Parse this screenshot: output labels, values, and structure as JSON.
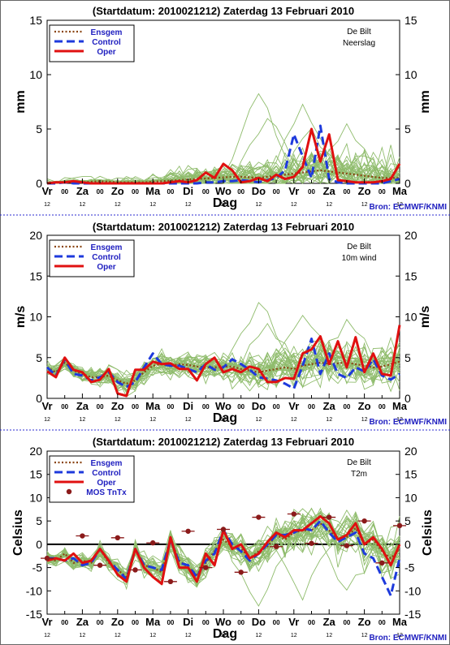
{
  "source": "Bron: ECMWF/KNMI",
  "x_axis": {
    "label": "Dag",
    "days": [
      "Vr",
      "Za",
      "Zo",
      "Ma",
      "Di",
      "Wo",
      "Do",
      "Vr",
      "Za",
      "Zo",
      "Ma"
    ],
    "hours_day": "12",
    "hours_mid": "00"
  },
  "colors": {
    "ensemble": "#8fbc6c",
    "ensgem": "#8b4513",
    "control": "#1e3adc",
    "oper": "#e01010",
    "label_blue": "#2020c0",
    "mos": "#8b1a1a"
  },
  "legend": {
    "ensgem": "Ensgem",
    "control": "Control",
    "oper": "Oper",
    "mos": "MOS TnTx"
  },
  "chart_data": [
    {
      "type": "line",
      "title": "(Startdatum: 2010021212)  Zaterdag 13 Februari 2010",
      "station": "De Bilt",
      "variable": "Neerslag",
      "ylabel": "mm",
      "ylim": [
        0,
        15
      ],
      "yticks": [
        0,
        5,
        10,
        15
      ],
      "x": [
        0,
        1,
        2,
        3,
        4,
        5,
        6,
        7,
        8,
        9,
        10,
        11,
        12,
        13,
        14,
        15,
        16,
        17,
        18,
        19,
        20,
        21,
        22,
        23,
        24,
        25,
        26,
        27,
        28,
        29,
        30,
        31,
        32,
        33,
        34,
        35,
        36,
        37,
        38,
        39,
        40
      ],
      "series": [
        {
          "name": "Ensgem",
          "values": [
            0,
            0.05,
            0.1,
            0.15,
            0.1,
            0.15,
            0.2,
            0.15,
            0.1,
            0.1,
            0.1,
            0.1,
            0.15,
            0.2,
            0.25,
            0.3,
            0.35,
            0.4,
            0.45,
            0.5,
            0.55,
            0.6,
            0.6,
            0.55,
            0.5,
            0.6,
            0.7,
            0.8,
            0.9,
            1,
            1.1,
            1.2,
            1.1,
            1,
            0.9,
            0.8,
            0.7,
            0.6,
            0.5,
            0.5,
            0.5
          ]
        },
        {
          "name": "Control",
          "values": [
            0,
            0,
            0.1,
            0,
            0,
            0,
            0,
            0,
            0,
            0,
            0,
            0,
            0,
            0,
            0,
            0,
            0,
            0,
            0.1,
            0.1,
            0.2,
            0.2,
            0.3,
            0.2,
            0.1,
            0.3,
            0.5,
            1.2,
            4.5,
            2.5,
            0.5,
            5.3,
            0.4,
            0.1,
            0,
            0,
            0,
            0,
            0,
            0.2,
            0.4
          ]
        },
        {
          "name": "Oper",
          "values": [
            0,
            0.1,
            0.1,
            0.2,
            0.1,
            0,
            0,
            0,
            0,
            0,
            0,
            0,
            0,
            0,
            0.1,
            0.2,
            0.1,
            0.3,
            1.0,
            0.5,
            1.8,
            1.2,
            0.1,
            0.2,
            0.5,
            0.2,
            0.8,
            0.4,
            0.6,
            1.5,
            5.0,
            2.0,
            4.5,
            0.3,
            0.2,
            0.1,
            0.1,
            0.1,
            0.2,
            0.4,
            1.8
          ]
        }
      ],
      "ensemble_extremes": [
        8.2,
        6.9,
        5.3,
        6.1,
        4.8
      ]
    },
    {
      "type": "line",
      "title": "(Startdatum: 2010021212)  Zaterdag 13 Februari 2010",
      "station": "De Bilt",
      "variable": "10m wind",
      "ylabel": "m/s",
      "ylim": [
        0,
        20
      ],
      "yticks": [
        0,
        5,
        10,
        15,
        20
      ],
      "x": [
        0,
        1,
        2,
        3,
        4,
        5,
        6,
        7,
        8,
        9,
        10,
        11,
        12,
        13,
        14,
        15,
        16,
        17,
        18,
        19,
        20,
        21,
        22,
        23,
        24,
        25,
        26,
        27,
        28,
        29,
        30,
        31,
        32,
        33,
        34,
        35,
        36,
        37,
        38,
        39,
        40
      ],
      "series": [
        {
          "name": "Ensgem",
          "values": [
            3.8,
            3.2,
            4.4,
            3.4,
            3,
            2.6,
            2.6,
            2.8,
            2.2,
            1.8,
            2.2,
            3.2,
            4,
            4.2,
            4,
            4.2,
            4.1,
            3.9,
            3.8,
            3.8,
            3.9,
            3.9,
            3.6,
            3.4,
            3.2,
            3.4,
            3.6,
            3.8,
            3.6,
            4,
            4.2,
            4.4,
            4.2,
            4.3,
            4.4,
            4.2,
            4,
            3.8,
            3.9,
            4.2,
            4.5
          ]
        },
        {
          "name": "Control",
          "values": [
            3.8,
            2.8,
            4.8,
            3,
            2.8,
            2.2,
            2.6,
            3.2,
            2,
            1.4,
            2,
            3.8,
            5.5,
            4.2,
            4,
            4,
            3.6,
            3.2,
            4.2,
            3.5,
            3.8,
            4.8,
            4.2,
            3.5,
            2.6,
            2.4,
            2.2,
            1.8,
            1.2,
            4,
            7.3,
            3,
            5.5,
            3,
            2.5,
            3.8,
            3.3,
            4.8,
            2.8,
            2.3,
            3
          ]
        },
        {
          "name": "Oper",
          "values": [
            3.3,
            2.6,
            5,
            3.5,
            3.2,
            2,
            2.3,
            3.6,
            0.6,
            0.3,
            3.5,
            3.5,
            4.5,
            4.2,
            4.3,
            3.6,
            3.6,
            2.2,
            4.2,
            5,
            3.2,
            3.6,
            3.2,
            3.9,
            3.6,
            2,
            2,
            2.5,
            2.4,
            5.5,
            6,
            7.6,
            4.2,
            7,
            3.8,
            7.5,
            3.2,
            5.5,
            3,
            2.8,
            9
          ]
        }
      ],
      "ensemble_extremes": [
        11.8,
        10.5,
        9.6,
        8.9
      ]
    },
    {
      "type": "line",
      "title": "(Startdatum: 2010021212)  Zaterdag 13 Februari 2010",
      "station": "De Bilt",
      "variable": "T2m",
      "ylabel": "Celsius",
      "ylim": [
        -15,
        20
      ],
      "yticks": [
        -15,
        -10,
        -5,
        0,
        5,
        10,
        15,
        20
      ],
      "x": [
        0,
        1,
        2,
        3,
        4,
        5,
        6,
        7,
        8,
        9,
        10,
        11,
        12,
        13,
        14,
        15,
        16,
        17,
        18,
        19,
        20,
        21,
        22,
        23,
        24,
        25,
        26,
        27,
        28,
        29,
        30,
        31,
        32,
        33,
        34,
        35,
        36,
        37,
        38,
        39,
        40
      ],
      "series": [
        {
          "name": "Ensgem",
          "values": [
            -3,
            -3.5,
            -2,
            -4,
            -3.5,
            -4,
            -1,
            -4,
            -5.5,
            -7,
            -1,
            -4.5,
            -5,
            -6,
            1,
            -3.5,
            -5,
            -6.5,
            -4,
            -1.5,
            1,
            -0.5,
            -1,
            -3,
            -1.5,
            -0.5,
            2,
            1,
            2.5,
            3,
            3,
            4.5,
            3,
            1,
            1.5,
            3.5,
            0,
            1,
            -1.5,
            -3,
            -1
          ]
        },
        {
          "name": "Control",
          "values": [
            -3,
            -3,
            -3.5,
            -3,
            -4.5,
            -4,
            -1,
            -3.5,
            -5.5,
            -7.5,
            -1,
            -4.5,
            -5,
            -5.5,
            1,
            -4,
            -4.5,
            -7,
            -3.5,
            -2,
            3,
            0,
            -1.5,
            -3.5,
            -2,
            0,
            2,
            2,
            2.5,
            3.5,
            3,
            5,
            2.5,
            0.5,
            1.5,
            2.5,
            -2,
            -3,
            -7,
            -11,
            -3
          ]
        },
        {
          "name": "Oper",
          "values": [
            -3.5,
            -3,
            -3.5,
            -2,
            -4,
            -3.5,
            -1,
            -3.5,
            -6.5,
            -8,
            -1,
            -5,
            -7,
            -8.5,
            1.5,
            -5,
            -5,
            -8,
            -2,
            -4.5,
            3,
            -1,
            0,
            -3,
            -2,
            0.5,
            2.5,
            1.5,
            3,
            3,
            4.5,
            6,
            4.5,
            1,
            2,
            4.5,
            0,
            1.5,
            -1,
            -4.5,
            0
          ]
        },
        {
          "name": "MOS TnTx",
          "points": [
            [
              0,
              -3
            ],
            [
              4,
              1.8
            ],
            [
              6,
              -4.5
            ],
            [
              8,
              1.4
            ],
            [
              10,
              -5.5
            ],
            [
              12,
              0.3
            ],
            [
              14,
              -8
            ],
            [
              16,
              2.8
            ],
            [
              18,
              -5
            ],
            [
              20,
              3.2
            ],
            [
              22,
              -6
            ],
            [
              24,
              5.8
            ],
            [
              26,
              -0.5
            ],
            [
              28,
              6.5
            ],
            [
              30,
              0.2
            ],
            [
              32,
              5.8
            ],
            [
              34,
              -0.3
            ],
            [
              36,
              5
            ],
            [
              38,
              -4
            ],
            [
              40,
              4
            ]
          ]
        }
      ],
      "ensemble_extremes": [
        -12.5,
        -11,
        -10
      ]
    }
  ]
}
